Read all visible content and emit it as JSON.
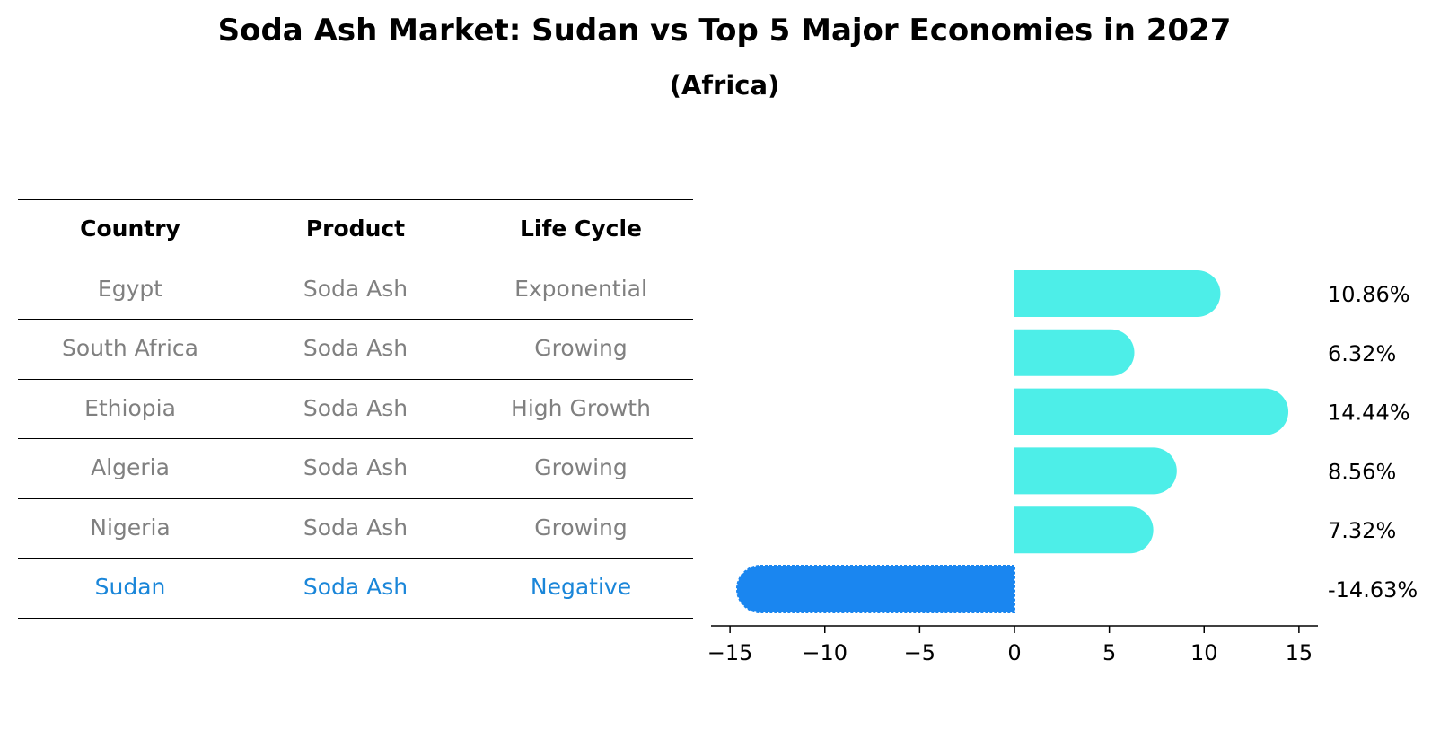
{
  "title": "Soda Ash Market: Sudan vs Top 5 Major Economies in 2027",
  "subtitle": "(Africa)",
  "table": {
    "headers": [
      "Country",
      "Product",
      "Life Cycle"
    ],
    "rows": [
      {
        "country": "Egypt",
        "product": "Soda Ash",
        "life_cycle": "Exponential"
      },
      {
        "country": "South Africa",
        "product": "Soda Ash",
        "life_cycle": "Growing"
      },
      {
        "country": "Ethiopia",
        "product": "Soda Ash",
        "life_cycle": "High Growth"
      },
      {
        "country": "Algeria",
        "product": "Soda Ash",
        "life_cycle": "Growing"
      },
      {
        "country": "Nigeria",
        "product": "Soda Ash",
        "life_cycle": "Growing"
      },
      {
        "country": "Sudan",
        "product": "Soda Ash",
        "life_cycle": "Negative"
      }
    ]
  },
  "colors": {
    "positive_bar": "#4deee8",
    "negative_bar": "#1a86f0",
    "highlight_text": "#1a86d9",
    "muted_text": "#808080"
  },
  "chart_data": {
    "type": "bar",
    "orientation": "horizontal",
    "categories": [
      "Egypt",
      "South Africa",
      "Ethiopia",
      "Algeria",
      "Nigeria",
      "Sudan"
    ],
    "values": [
      10.86,
      6.32,
      14.44,
      8.56,
      7.32,
      -14.63
    ],
    "value_labels": [
      "10.86%",
      "6.32%",
      "14.44%",
      "8.56%",
      "7.32%",
      "-14.63%"
    ],
    "xlim": [
      -16,
      16
    ],
    "xticks": [
      -15,
      -10,
      -5,
      0,
      5,
      10,
      15
    ],
    "xtick_labels": [
      "−15",
      "−10",
      "−5",
      "0",
      "5",
      "10",
      "15"
    ],
    "highlight": "Sudan"
  }
}
